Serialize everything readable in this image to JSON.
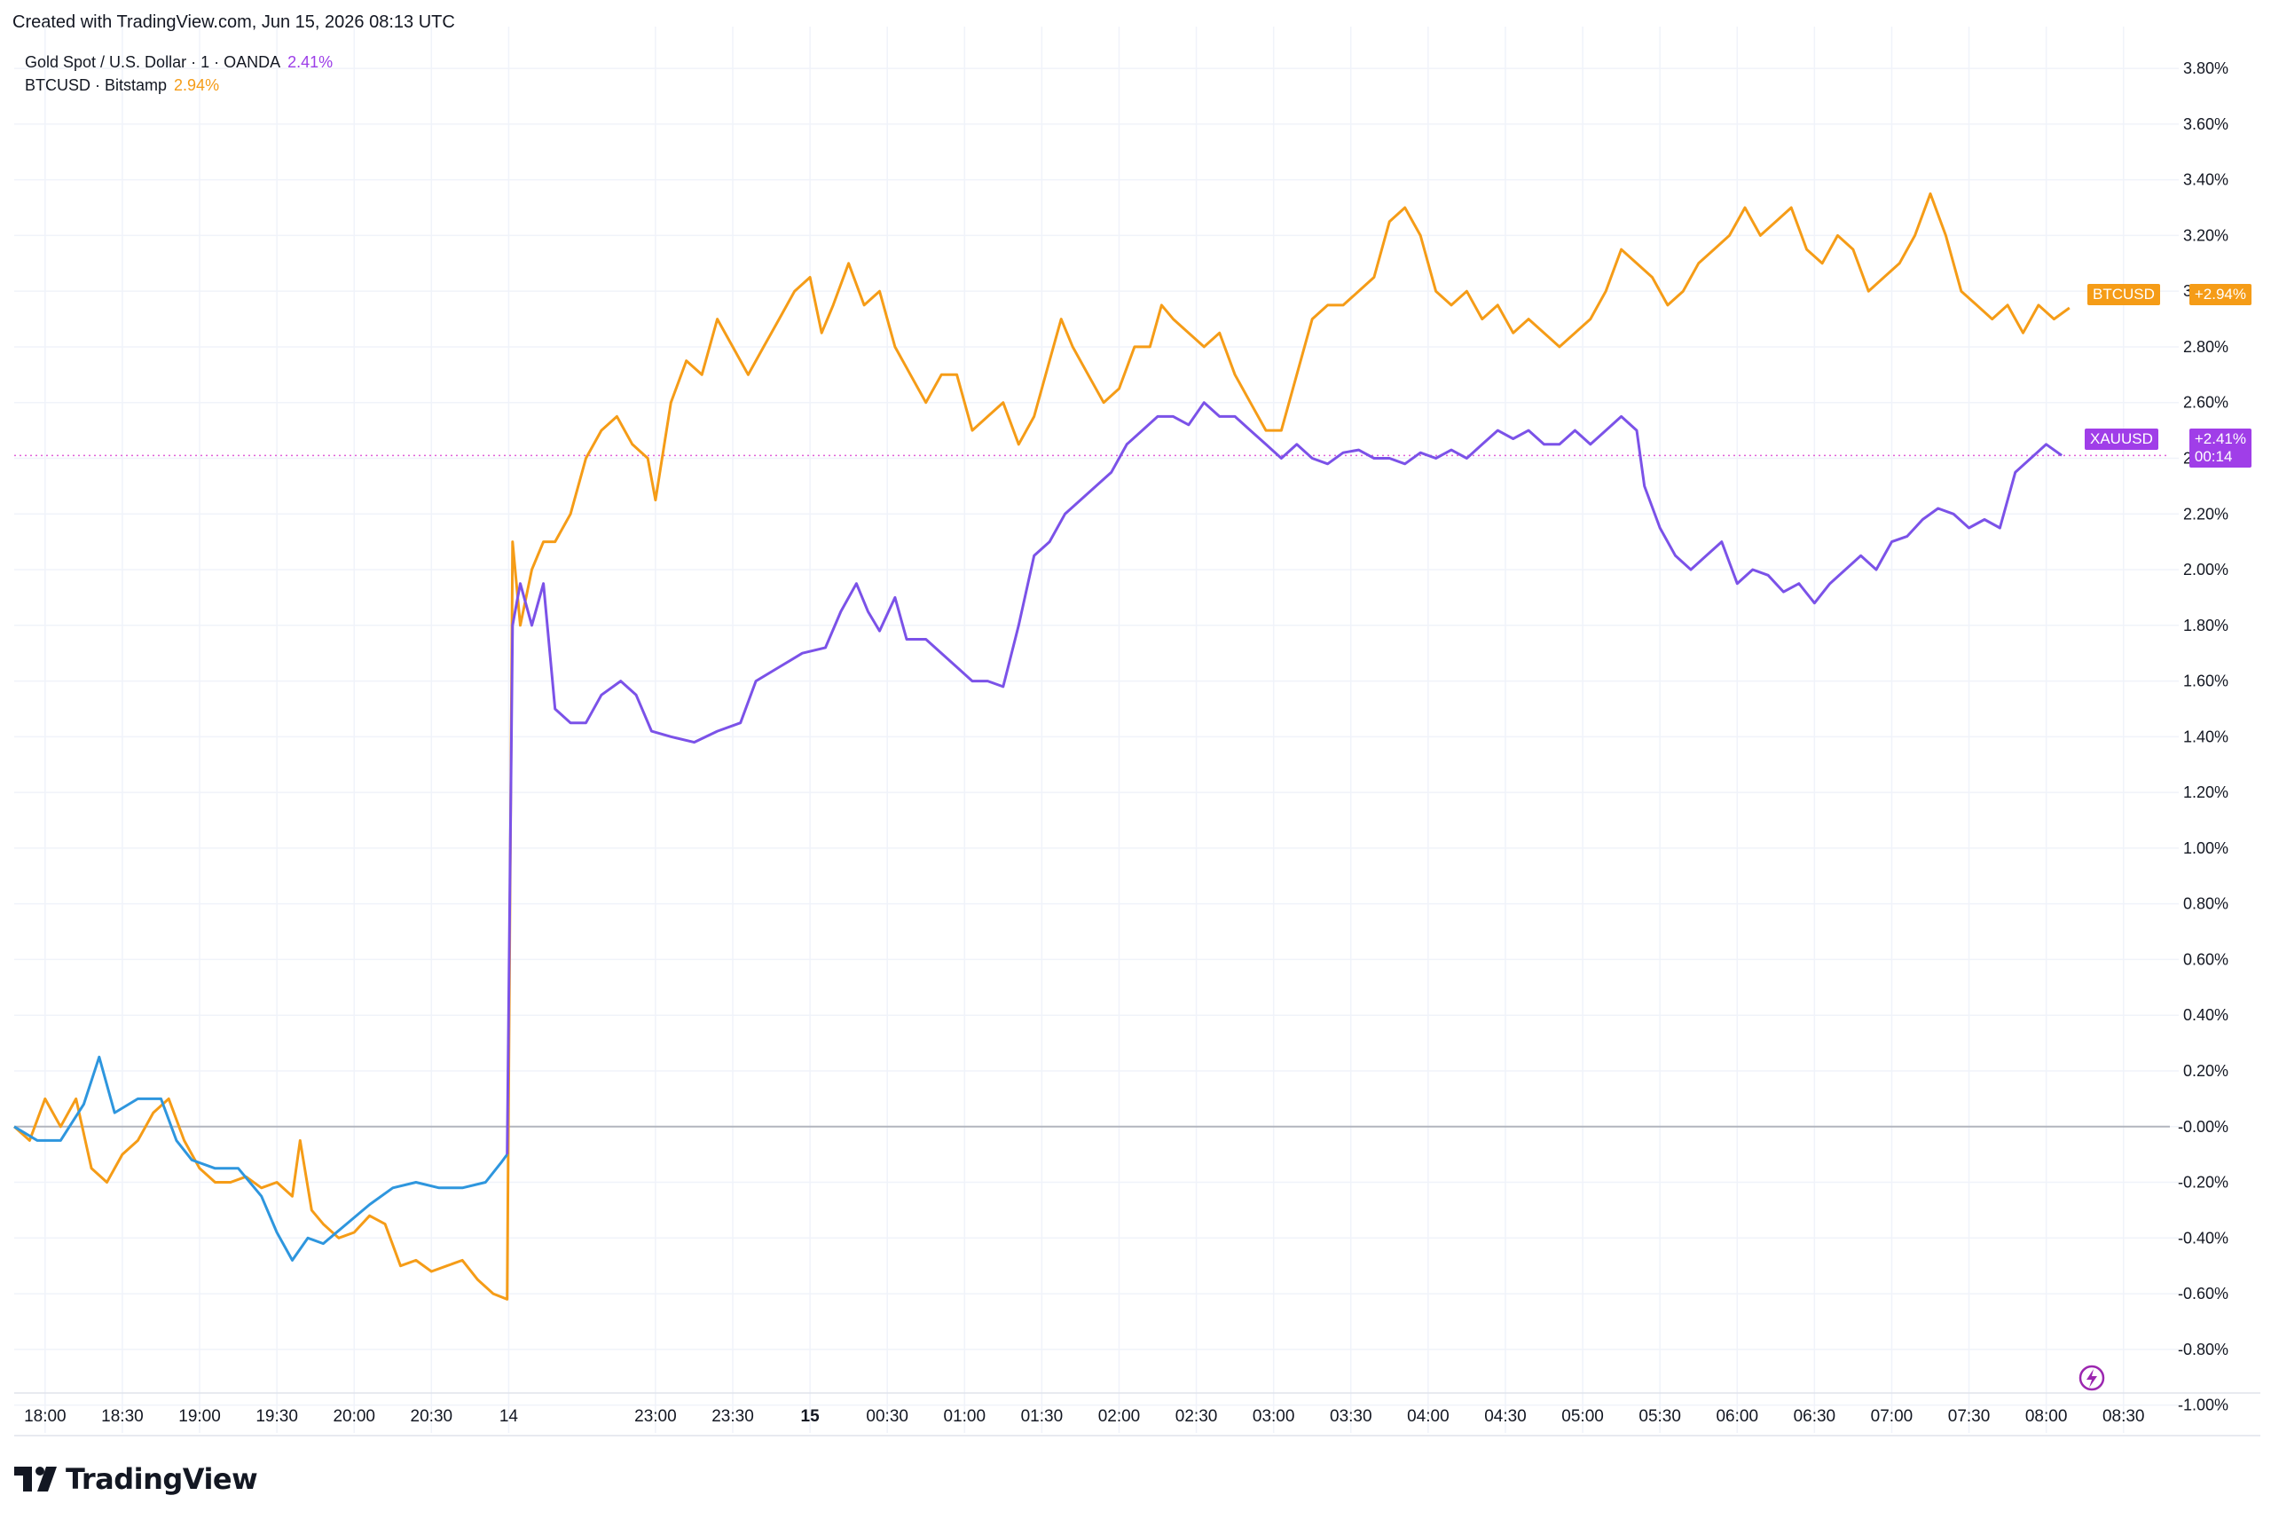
{
  "header": {
    "credit": "Created with TradingView.com, Jun 15, 2026 08:13 UTC"
  },
  "legend": {
    "xau": {
      "label": "Gold Spot / U.S. Dollar · 1 · OANDA",
      "value": "2.41%"
    },
    "btc": {
      "label": "BTCUSD · Bitstamp",
      "value": "2.94%"
    }
  },
  "brand": {
    "name": "TradingView"
  },
  "tags": {
    "btc_name": "BTCUSD",
    "btc_value": "+2.94%",
    "xau_name": "XAUUSD",
    "xau_value": "+2.41%",
    "xau_countdown": "00:14"
  },
  "colors": {
    "gold": "#7b52e8",
    "gold_early": "#2e96de",
    "btc": "#f59c17",
    "grid": "#f0f3fa",
    "zero": "#b2b5be"
  },
  "icons": {
    "bottom_right": "lightning-icon"
  },
  "chart_data": {
    "type": "line",
    "ylim": [
      -1.1,
      3.95
    ],
    "y_ticks": [
      "3.80%",
      "3.60%",
      "3.40%",
      "3.20%",
      "3.00%",
      "2.80%",
      "2.60%",
      "2.40%",
      "2.20%",
      "2.00%",
      "1.80%",
      "1.60%",
      "1.40%",
      "1.20%",
      "1.00%",
      "0.80%",
      "0.60%",
      "0.40%",
      "0.20%",
      "-0.00%",
      "-0.20%",
      "-0.40%",
      "-0.60%",
      "-0.80%",
      "-1.00%"
    ],
    "y_tick_values": [
      3.8,
      3.6,
      3.4,
      3.2,
      3.0,
      2.8,
      2.6,
      2.4,
      2.2,
      2.0,
      1.8,
      1.6,
      1.4,
      1.2,
      1.0,
      0.8,
      0.6,
      0.4,
      0.2,
      0.0,
      -0.2,
      -0.4,
      -0.6,
      -0.8,
      -1.0
    ],
    "x_ticks": [
      {
        "label": "18:00",
        "pos": 0.4,
        "bold": false
      },
      {
        "label": "18:30",
        "pos": 1.4,
        "bold": false
      },
      {
        "label": "19:00",
        "pos": 2.4,
        "bold": false
      },
      {
        "label": "19:30",
        "pos": 3.4,
        "bold": false
      },
      {
        "label": "20:00",
        "pos": 4.4,
        "bold": false
      },
      {
        "label": "20:30",
        "pos": 5.4,
        "bold": false
      },
      {
        "label": "14",
        "pos": 6.4,
        "bold": false
      },
      {
        "label": "23:00",
        "pos": 8.3,
        "bold": false
      },
      {
        "label": "23:30",
        "pos": 9.3,
        "bold": false
      },
      {
        "label": "15",
        "pos": 10.3,
        "bold": true
      },
      {
        "label": "00:30",
        "pos": 11.3,
        "bold": false
      },
      {
        "label": "01:00",
        "pos": 12.3,
        "bold": false
      },
      {
        "label": "01:30",
        "pos": 13.3,
        "bold": false
      },
      {
        "label": "02:00",
        "pos": 14.3,
        "bold": false
      },
      {
        "label": "02:30",
        "pos": 15.3,
        "bold": false
      },
      {
        "label": "03:00",
        "pos": 16.3,
        "bold": false
      },
      {
        "label": "03:30",
        "pos": 17.3,
        "bold": false
      },
      {
        "label": "04:00",
        "pos": 18.3,
        "bold": false
      },
      {
        "label": "04:30",
        "pos": 19.3,
        "bold": false
      },
      {
        "label": "05:00",
        "pos": 20.3,
        "bold": false
      },
      {
        "label": "05:30",
        "pos": 21.3,
        "bold": false
      },
      {
        "label": "06:00",
        "pos": 22.3,
        "bold": false
      },
      {
        "label": "06:30",
        "pos": 23.3,
        "bold": false
      },
      {
        "label": "07:00",
        "pos": 24.3,
        "bold": false
      },
      {
        "label": "07:30",
        "pos": 25.3,
        "bold": false
      },
      {
        "label": "08:00",
        "pos": 26.3,
        "bold": false
      },
      {
        "label": "08:30",
        "pos": 27.3,
        "bold": false
      }
    ],
    "x_range": [
      0,
      27.9
    ],
    "series": [
      {
        "key": "xau",
        "color_early": "#2e96de",
        "color": "#7b52e8",
        "split_at": 6.4,
        "points": [
          [
            0.0,
            0.0
          ],
          [
            0.3,
            -0.05
          ],
          [
            0.6,
            -0.05
          ],
          [
            0.9,
            0.08
          ],
          [
            1.1,
            0.25
          ],
          [
            1.3,
            0.05
          ],
          [
            1.6,
            0.1
          ],
          [
            1.9,
            0.1
          ],
          [
            2.1,
            -0.05
          ],
          [
            2.3,
            -0.12
          ],
          [
            2.6,
            -0.15
          ],
          [
            2.9,
            -0.15
          ],
          [
            3.2,
            -0.25
          ],
          [
            3.4,
            -0.38
          ],
          [
            3.6,
            -0.48
          ],
          [
            3.8,
            -0.4
          ],
          [
            4.0,
            -0.42
          ],
          [
            4.3,
            -0.35
          ],
          [
            4.6,
            -0.28
          ],
          [
            4.9,
            -0.22
          ],
          [
            5.2,
            -0.2
          ],
          [
            5.5,
            -0.22
          ],
          [
            5.8,
            -0.22
          ],
          [
            6.1,
            -0.2
          ],
          [
            6.3,
            -0.13
          ],
          [
            6.38,
            -0.1
          ],
          [
            6.45,
            1.8
          ],
          [
            6.55,
            1.95
          ],
          [
            6.7,
            1.8
          ],
          [
            6.85,
            1.95
          ],
          [
            7.0,
            1.5
          ],
          [
            7.2,
            1.45
          ],
          [
            7.4,
            1.45
          ],
          [
            7.6,
            1.55
          ],
          [
            7.85,
            1.6
          ],
          [
            8.05,
            1.55
          ],
          [
            8.25,
            1.42
          ],
          [
            8.5,
            1.4
          ],
          [
            8.8,
            1.38
          ],
          [
            9.1,
            1.42
          ],
          [
            9.4,
            1.45
          ],
          [
            9.6,
            1.6
          ],
          [
            9.9,
            1.65
          ],
          [
            10.2,
            1.7
          ],
          [
            10.5,
            1.72
          ],
          [
            10.7,
            1.85
          ],
          [
            10.9,
            1.95
          ],
          [
            11.05,
            1.85
          ],
          [
            11.2,
            1.78
          ],
          [
            11.4,
            1.9
          ],
          [
            11.55,
            1.75
          ],
          [
            11.8,
            1.75
          ],
          [
            12.0,
            1.7
          ],
          [
            12.2,
            1.65
          ],
          [
            12.4,
            1.6
          ],
          [
            12.6,
            1.6
          ],
          [
            12.8,
            1.58
          ],
          [
            13.0,
            1.8
          ],
          [
            13.2,
            2.05
          ],
          [
            13.4,
            2.1
          ],
          [
            13.6,
            2.2
          ],
          [
            13.8,
            2.25
          ],
          [
            14.0,
            2.3
          ],
          [
            14.2,
            2.35
          ],
          [
            14.4,
            2.45
          ],
          [
            14.6,
            2.5
          ],
          [
            14.8,
            2.55
          ],
          [
            15.0,
            2.55
          ],
          [
            15.2,
            2.52
          ],
          [
            15.4,
            2.6
          ],
          [
            15.6,
            2.55
          ],
          [
            15.8,
            2.55
          ],
          [
            16.0,
            2.5
          ],
          [
            16.2,
            2.45
          ],
          [
            16.4,
            2.4
          ],
          [
            16.6,
            2.45
          ],
          [
            16.8,
            2.4
          ],
          [
            17.0,
            2.38
          ],
          [
            17.2,
            2.42
          ],
          [
            17.4,
            2.43
          ],
          [
            17.6,
            2.4
          ],
          [
            17.8,
            2.4
          ],
          [
            18.0,
            2.38
          ],
          [
            18.2,
            2.42
          ],
          [
            18.4,
            2.4
          ],
          [
            18.6,
            2.43
          ],
          [
            18.8,
            2.4
          ],
          [
            19.0,
            2.45
          ],
          [
            19.2,
            2.5
          ],
          [
            19.4,
            2.47
          ],
          [
            19.6,
            2.5
          ],
          [
            19.8,
            2.45
          ],
          [
            20.0,
            2.45
          ],
          [
            20.2,
            2.5
          ],
          [
            20.4,
            2.45
          ],
          [
            20.6,
            2.5
          ],
          [
            20.8,
            2.55
          ],
          [
            21.0,
            2.5
          ],
          [
            21.1,
            2.3
          ],
          [
            21.3,
            2.15
          ],
          [
            21.5,
            2.05
          ],
          [
            21.7,
            2.0
          ],
          [
            21.9,
            2.05
          ],
          [
            22.1,
            2.1
          ],
          [
            22.3,
            1.95
          ],
          [
            22.5,
            2.0
          ],
          [
            22.7,
            1.98
          ],
          [
            22.9,
            1.92
          ],
          [
            23.1,
            1.95
          ],
          [
            23.3,
            1.88
          ],
          [
            23.5,
            1.95
          ],
          [
            23.7,
            2.0
          ],
          [
            23.9,
            2.05
          ],
          [
            24.1,
            2.0
          ],
          [
            24.3,
            2.1
          ],
          [
            24.5,
            2.12
          ],
          [
            24.7,
            2.18
          ],
          [
            24.9,
            2.22
          ],
          [
            25.1,
            2.2
          ],
          [
            25.3,
            2.15
          ],
          [
            25.5,
            2.18
          ],
          [
            25.7,
            2.15
          ],
          [
            25.9,
            2.35
          ],
          [
            26.1,
            2.4
          ],
          [
            26.3,
            2.45
          ],
          [
            26.5,
            2.41
          ]
        ]
      },
      {
        "key": "btc",
        "color": "#f59c17",
        "points": [
          [
            0.0,
            0.0
          ],
          [
            0.2,
            -0.05
          ],
          [
            0.4,
            0.1
          ],
          [
            0.6,
            0.0
          ],
          [
            0.8,
            0.1
          ],
          [
            1.0,
            -0.15
          ],
          [
            1.2,
            -0.2
          ],
          [
            1.4,
            -0.1
          ],
          [
            1.6,
            -0.05
          ],
          [
            1.8,
            0.05
          ],
          [
            2.0,
            0.1
          ],
          [
            2.2,
            -0.05
          ],
          [
            2.4,
            -0.15
          ],
          [
            2.6,
            -0.2
          ],
          [
            2.8,
            -0.2
          ],
          [
            3.0,
            -0.18
          ],
          [
            3.2,
            -0.22
          ],
          [
            3.4,
            -0.2
          ],
          [
            3.6,
            -0.25
          ],
          [
            3.7,
            -0.05
          ],
          [
            3.85,
            -0.3
          ],
          [
            4.0,
            -0.35
          ],
          [
            4.2,
            -0.4
          ],
          [
            4.4,
            -0.38
          ],
          [
            4.6,
            -0.32
          ],
          [
            4.8,
            -0.35
          ],
          [
            5.0,
            -0.5
          ],
          [
            5.2,
            -0.48
          ],
          [
            5.4,
            -0.52
          ],
          [
            5.6,
            -0.5
          ],
          [
            5.8,
            -0.48
          ],
          [
            6.0,
            -0.55
          ],
          [
            6.2,
            -0.6
          ],
          [
            6.38,
            -0.62
          ],
          [
            6.45,
            2.1
          ],
          [
            6.55,
            1.8
          ],
          [
            6.7,
            2.0
          ],
          [
            6.85,
            2.1
          ],
          [
            7.0,
            2.1
          ],
          [
            7.2,
            2.2
          ],
          [
            7.4,
            2.4
          ],
          [
            7.6,
            2.5
          ],
          [
            7.8,
            2.55
          ],
          [
            8.0,
            2.45
          ],
          [
            8.2,
            2.4
          ],
          [
            8.3,
            2.25
          ],
          [
            8.5,
            2.6
          ],
          [
            8.7,
            2.75
          ],
          [
            8.9,
            2.7
          ],
          [
            9.1,
            2.9
          ],
          [
            9.3,
            2.8
          ],
          [
            9.5,
            2.7
          ],
          [
            9.7,
            2.8
          ],
          [
            9.9,
            2.9
          ],
          [
            10.1,
            3.0
          ],
          [
            10.3,
            3.05
          ],
          [
            10.45,
            2.85
          ],
          [
            10.6,
            2.95
          ],
          [
            10.8,
            3.1
          ],
          [
            11.0,
            2.95
          ],
          [
            11.2,
            3.0
          ],
          [
            11.4,
            2.8
          ],
          [
            11.6,
            2.7
          ],
          [
            11.8,
            2.6
          ],
          [
            12.0,
            2.7
          ],
          [
            12.2,
            2.7
          ],
          [
            12.4,
            2.5
          ],
          [
            12.6,
            2.55
          ],
          [
            12.8,
            2.6
          ],
          [
            13.0,
            2.45
          ],
          [
            13.2,
            2.55
          ],
          [
            13.4,
            2.75
          ],
          [
            13.55,
            2.9
          ],
          [
            13.7,
            2.8
          ],
          [
            13.9,
            2.7
          ],
          [
            14.1,
            2.6
          ],
          [
            14.3,
            2.65
          ],
          [
            14.5,
            2.8
          ],
          [
            14.7,
            2.8
          ],
          [
            14.85,
            2.95
          ],
          [
            15.0,
            2.9
          ],
          [
            15.2,
            2.85
          ],
          [
            15.4,
            2.8
          ],
          [
            15.6,
            2.85
          ],
          [
            15.8,
            2.7
          ],
          [
            16.0,
            2.6
          ],
          [
            16.2,
            2.5
          ],
          [
            16.4,
            2.5
          ],
          [
            16.6,
            2.7
          ],
          [
            16.8,
            2.9
          ],
          [
            17.0,
            2.95
          ],
          [
            17.2,
            2.95
          ],
          [
            17.4,
            3.0
          ],
          [
            17.6,
            3.05
          ],
          [
            17.8,
            3.25
          ],
          [
            18.0,
            3.3
          ],
          [
            18.2,
            3.2
          ],
          [
            18.4,
            3.0
          ],
          [
            18.6,
            2.95
          ],
          [
            18.8,
            3.0
          ],
          [
            19.0,
            2.9
          ],
          [
            19.2,
            2.95
          ],
          [
            19.4,
            2.85
          ],
          [
            19.6,
            2.9
          ],
          [
            19.8,
            2.85
          ],
          [
            20.0,
            2.8
          ],
          [
            20.2,
            2.85
          ],
          [
            20.4,
            2.9
          ],
          [
            20.6,
            3.0
          ],
          [
            20.8,
            3.15
          ],
          [
            21.0,
            3.1
          ],
          [
            21.2,
            3.05
          ],
          [
            21.4,
            2.95
          ],
          [
            21.6,
            3.0
          ],
          [
            21.8,
            3.1
          ],
          [
            22.0,
            3.15
          ],
          [
            22.2,
            3.2
          ],
          [
            22.4,
            3.3
          ],
          [
            22.6,
            3.2
          ],
          [
            22.8,
            3.25
          ],
          [
            23.0,
            3.3
          ],
          [
            23.2,
            3.15
          ],
          [
            23.4,
            3.1
          ],
          [
            23.6,
            3.2
          ],
          [
            23.8,
            3.15
          ],
          [
            24.0,
            3.0
          ],
          [
            24.2,
            3.05
          ],
          [
            24.4,
            3.1
          ],
          [
            24.6,
            3.2
          ],
          [
            24.8,
            3.35
          ],
          [
            25.0,
            3.2
          ],
          [
            25.2,
            3.0
          ],
          [
            25.4,
            2.95
          ],
          [
            25.6,
            2.9
          ],
          [
            25.8,
            2.95
          ],
          [
            26.0,
            2.85
          ],
          [
            26.2,
            2.95
          ],
          [
            26.4,
            2.9
          ],
          [
            26.6,
            2.94
          ]
        ]
      }
    ]
  }
}
